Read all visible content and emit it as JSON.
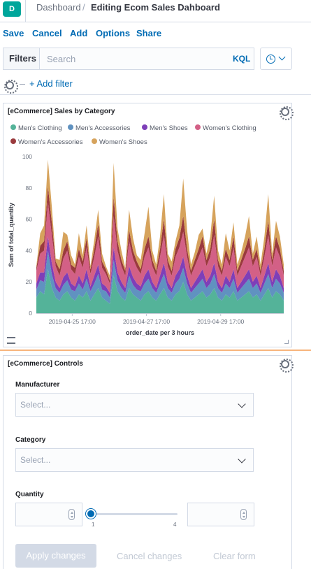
{
  "header": {
    "logo_letter": "D",
    "breadcrumb_root": "Dashboard",
    "breadcrumb_sep": "/",
    "breadcrumb_current": "Editing Ecom Sales Dahboard"
  },
  "menu": {
    "save": "Save",
    "cancel": "Cancel",
    "add": "Add",
    "options": "Options",
    "share": "Share"
  },
  "filters": {
    "label": "Filters",
    "search_placeholder": "Search",
    "kql": "KQL",
    "add_filter": "+ Add filter"
  },
  "sales_panel": {
    "title": "[eCommerce] Sales by Category"
  },
  "controls_panel": {
    "title": "[eCommerce] Controls",
    "manufacturer_label": "Manufacturer",
    "manufacturer_placeholder": "Select...",
    "category_label": "Category",
    "category_placeholder": "Select...",
    "quantity_label": "Quantity",
    "quantity_min": "1",
    "quantity_max": "4",
    "apply": "Apply changes",
    "cancel": "Cancel changes",
    "clear": "Clear form"
  },
  "colors": {
    "accent": "#006bb4",
    "men_clothing": "#54b399",
    "men_accessories": "#6092c0",
    "men_shoes": "#7e3fb8",
    "women_clothing": "#d36086",
    "women_accessories": "#9a3a3d",
    "women_shoes": "#d6a35c"
  },
  "chart_data": {
    "type": "area",
    "stacked": true,
    "title": "[eCommerce] Sales by Category",
    "xlabel": "order_date per 3 hours",
    "ylabel": "Sum of total_quantity",
    "ylim": [
      0,
      100
    ],
    "yticks": [
      0,
      20,
      40,
      60,
      80,
      100
    ],
    "x_tick_labels": [
      "2019-04-25 17:00",
      "2019-04-27 17:00",
      "2019-04-29 17:00"
    ],
    "legend_position": "top",
    "grid": false,
    "series": [
      {
        "name": "Men's Clothing",
        "color": "#54b399",
        "values": [
          10,
          14,
          12,
          28,
          16,
          10,
          8,
          12,
          14,
          10,
          8,
          12,
          10,
          14,
          8,
          12,
          16,
          10,
          8,
          6,
          24,
          14,
          10,
          8,
          16,
          12,
          10,
          8,
          12,
          14,
          10,
          8,
          12,
          16,
          10,
          8,
          12,
          14,
          20,
          12,
          8,
          10,
          12,
          14,
          10,
          12,
          16,
          10,
          8,
          12,
          10,
          14,
          8,
          10,
          12,
          14,
          10,
          12,
          8,
          12,
          16,
          10,
          14,
          12,
          8
        ]
      },
      {
        "name": "Men's Accessories",
        "color": "#6092c0",
        "values": [
          5,
          7,
          8,
          12,
          9,
          6,
          5,
          6,
          7,
          5,
          6,
          7,
          5,
          8,
          6,
          7,
          9,
          5,
          6,
          4,
          10,
          7,
          6,
          5,
          8,
          6,
          5,
          6,
          7,
          8,
          6,
          5,
          7,
          9,
          6,
          5,
          7,
          8,
          9,
          7,
          5,
          6,
          7,
          8,
          6,
          7,
          9,
          6,
          5,
          7,
          6,
          8,
          5,
          6,
          7,
          8,
          6,
          7,
          5,
          7,
          9,
          6,
          8,
          7,
          5
        ]
      },
      {
        "name": "Men's Shoes",
        "color": "#7e3fb8",
        "values": [
          4,
          5,
          6,
          9,
          7,
          4,
          3,
          5,
          5,
          4,
          3,
          5,
          4,
          6,
          3,
          5,
          6,
          4,
          3,
          3,
          8,
          5,
          4,
          3,
          6,
          5,
          4,
          3,
          5,
          6,
          4,
          3,
          5,
          7,
          4,
          3,
          5,
          6,
          7,
          5,
          3,
          4,
          5,
          6,
          4,
          5,
          7,
          4,
          3,
          5,
          4,
          6,
          3,
          4,
          5,
          6,
          4,
          5,
          3,
          5,
          7,
          4,
          6,
          5,
          3
        ]
      },
      {
        "name": "Women's Clothing",
        "color": "#d36086",
        "values": [
          8,
          12,
          14,
          22,
          18,
          10,
          8,
          12,
          14,
          9,
          8,
          12,
          10,
          14,
          8,
          12,
          18,
          10,
          8,
          6,
          20,
          14,
          10,
          8,
          16,
          12,
          10,
          8,
          12,
          14,
          10,
          8,
          12,
          18,
          10,
          8,
          12,
          14,
          16,
          12,
          8,
          10,
          12,
          14,
          10,
          12,
          18,
          10,
          8,
          12,
          10,
          14,
          8,
          10,
          12,
          14,
          10,
          12,
          8,
          12,
          18,
          10,
          14,
          12,
          8
        ]
      },
      {
        "name": "Women's Accessories",
        "color": "#9a3a3d",
        "values": [
          2,
          5,
          6,
          10,
          8,
          3,
          4,
          5,
          6,
          3,
          4,
          5,
          4,
          6,
          3,
          5,
          8,
          4,
          3,
          2,
          12,
          6,
          4,
          3,
          7,
          5,
          4,
          3,
          5,
          7,
          4,
          3,
          5,
          10,
          4,
          3,
          5,
          6,
          10,
          5,
          3,
          4,
          5,
          7,
          4,
          5,
          10,
          4,
          3,
          5,
          4,
          7,
          3,
          4,
          5,
          7,
          4,
          5,
          3,
          5,
          9,
          4,
          7,
          5,
          3
        ]
      },
      {
        "name": "Women's Shoes",
        "color": "#d6a35c",
        "values": [
          1,
          8,
          10,
          17,
          10,
          2,
          6,
          12,
          4,
          6,
          2,
          10,
          4,
          8,
          2,
          6,
          9,
          5,
          2,
          3,
          22,
          8,
          6,
          2,
          13,
          8,
          4,
          6,
          10,
          19,
          6,
          4,
          8,
          16,
          4,
          6,
          5,
          8,
          24,
          12,
          4,
          5,
          9,
          5,
          4,
          8,
          15,
          6,
          4,
          10,
          6,
          9,
          4,
          5,
          8,
          13,
          4,
          8,
          4,
          8,
          17,
          4,
          10,
          8,
          4
        ]
      }
    ]
  }
}
